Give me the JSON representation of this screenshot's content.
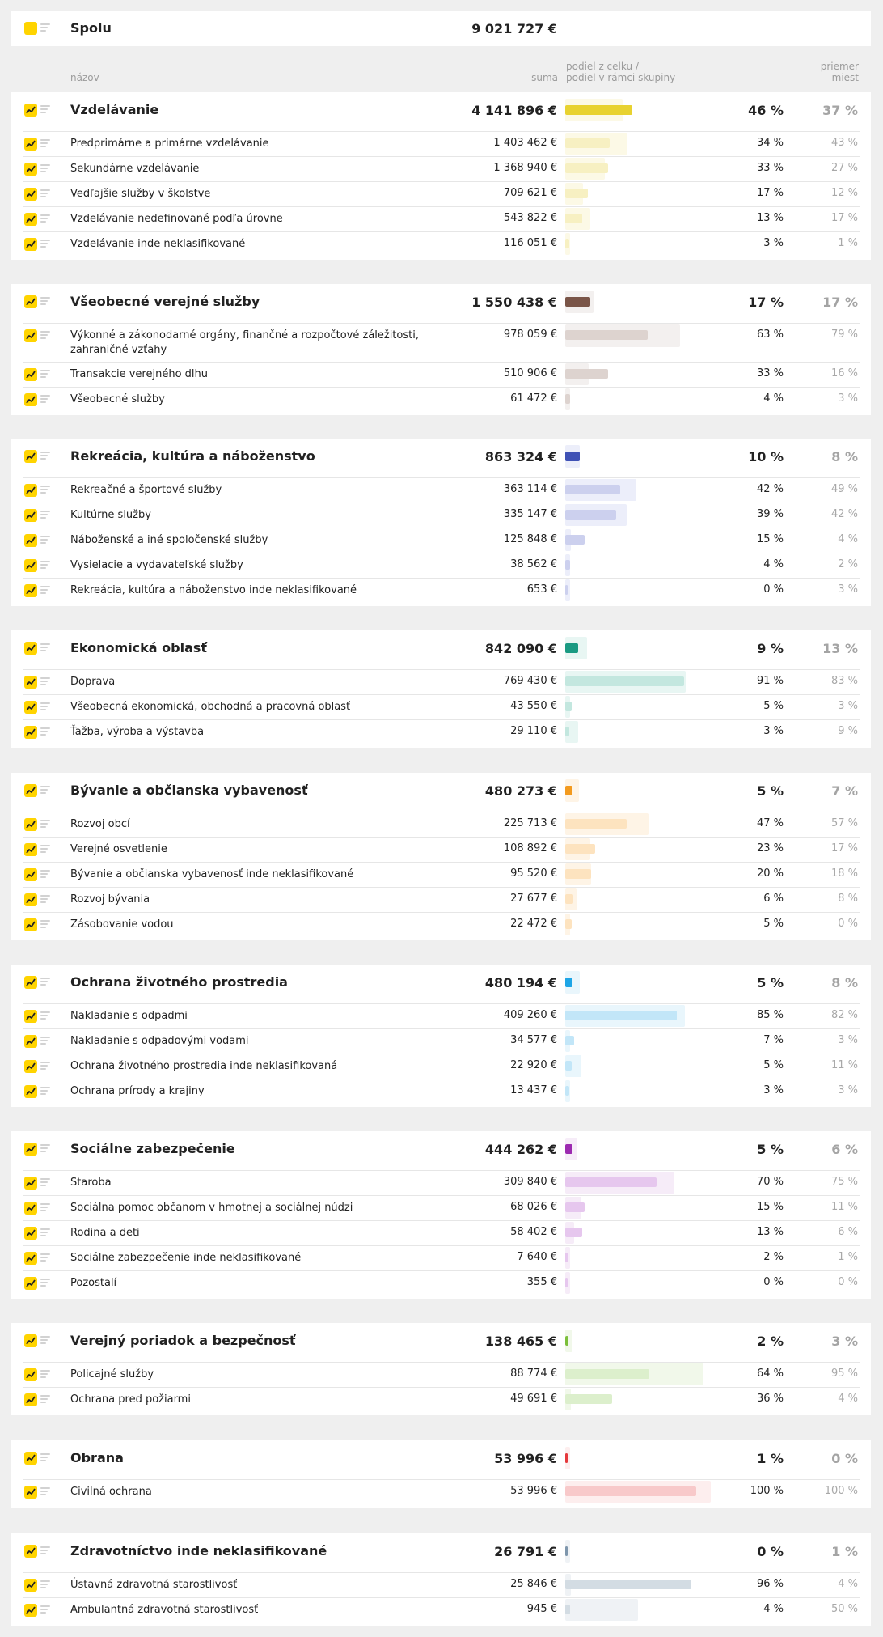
{
  "total": {
    "label": "Spolu",
    "amount": "9 021 727 €"
  },
  "columns": {
    "name": "názov",
    "amount": "suma",
    "share_line1": "podiel z celku /",
    "share_line2": "podiel v rámci skupiny",
    "avg_line1": "priemer",
    "avg_line2": "miest"
  },
  "icons": {
    "chart": "chart-icon",
    "list": "list-icon"
  },
  "groups": [
    {
      "name": "Vzdelávanie",
      "amount": "4 141 896 €",
      "share": "46 %",
      "avg": "37 %",
      "share_value": 46,
      "avg_value": 37,
      "color": "#e8d230",
      "light": "#f7f0c2",
      "bg": "#fcf9e6",
      "items": [
        {
          "name": "Predprimárne a primárne vzdelávanie",
          "amount": "1 403 462 €",
          "share": "34 %",
          "avg": "43 %",
          "share_value": 34,
          "avg_value": 43
        },
        {
          "name": "Sekundárne vzdelávanie",
          "amount": "1 368 940 €",
          "share": "33 %",
          "avg": "27 %",
          "share_value": 33,
          "avg_value": 27
        },
        {
          "name": "Vedľajšie služby v školstve",
          "amount": "709 621 €",
          "share": "17 %",
          "avg": "12 %",
          "share_value": 17,
          "avg_value": 12
        },
        {
          "name": "Vzdelávanie nedefinované podľa úrovne",
          "amount": "543 822 €",
          "share": "13 %",
          "avg": "17 %",
          "share_value": 13,
          "avg_value": 17
        },
        {
          "name": "Vzdelávanie inde neklasifikované",
          "amount": "116 051 €",
          "share": "3 %",
          "avg": "1 %",
          "share_value": 3,
          "avg_value": 1
        }
      ]
    },
    {
      "name": "Všeobecné verejné služby",
      "amount": "1 550 438 €",
      "share": "17 %",
      "avg": "17 %",
      "share_value": 17,
      "avg_value": 17,
      "color": "#7a5548",
      "light": "#ddd3cf",
      "bg": "#f3f0ef",
      "items": [
        {
          "name": "Výkonné a zákonodarné orgány, finančné a rozpočtové záležitosti, zahraničné vzťahy",
          "amount": "978 059 €",
          "share": "63 %",
          "avg": "79 %",
          "share_value": 63,
          "avg_value": 79
        },
        {
          "name": "Transakcie verejného dlhu",
          "amount": "510 906 €",
          "share": "33 %",
          "avg": "16 %",
          "share_value": 33,
          "avg_value": 16
        },
        {
          "name": "Všeobecné služby",
          "amount": "61 472 €",
          "share": "4 %",
          "avg": "3 %",
          "share_value": 4,
          "avg_value": 3
        }
      ]
    },
    {
      "name": "Rekreácia, kultúra a náboženstvo",
      "amount": "863 324 €",
      "share": "10 %",
      "avg": "8 %",
      "share_value": 10,
      "avg_value": 8,
      "color": "#3f51b5",
      "light": "#ccd0ee",
      "bg": "#eceefa",
      "items": [
        {
          "name": "Rekreačné a športové služby",
          "amount": "363 114 €",
          "share": "42 %",
          "avg": "49 %",
          "share_value": 42,
          "avg_value": 49
        },
        {
          "name": "Kultúrne služby",
          "amount": "335 147 €",
          "share": "39 %",
          "avg": "42 %",
          "share_value": 39,
          "avg_value": 42
        },
        {
          "name": "Náboženské a iné spoločenské služby",
          "amount": "125 848 €",
          "share": "15 %",
          "avg": "4 %",
          "share_value": 15,
          "avg_value": 4
        },
        {
          "name": "Vysielacie a vydavateľské služby",
          "amount": "38 562 €",
          "share": "4 %",
          "avg": "2 %",
          "share_value": 4,
          "avg_value": 2
        },
        {
          "name": "Rekreácia, kultúra a náboženstvo inde neklasifikované",
          "amount": "653 €",
          "share": "0 %",
          "avg": "3 %",
          "share_value": 0,
          "avg_value": 3
        }
      ]
    },
    {
      "name": "Ekonomická oblasť",
      "amount": "842 090 €",
      "share": "9 %",
      "avg": "13 %",
      "share_value": 9,
      "avg_value": 13,
      "color": "#1a9a82",
      "light": "#c3e7df",
      "bg": "#e8f6f3",
      "items": [
        {
          "name": "Doprava",
          "amount": "769 430 €",
          "share": "91 %",
          "avg": "83 %",
          "share_value": 91,
          "avg_value": 83
        },
        {
          "name": "Všeobecná ekonomická, obchodná a pracovná oblasť",
          "amount": "43 550 €",
          "share": "5 %",
          "avg": "3 %",
          "share_value": 5,
          "avg_value": 3
        },
        {
          "name": "Ťažba, výroba a výstavba",
          "amount": "29 110 €",
          "share": "3 %",
          "avg": "9 %",
          "share_value": 3,
          "avg_value": 9
        }
      ]
    },
    {
      "name": "Bývanie a občianska vybavenosť",
      "amount": "480 273 €",
      "share": "5 %",
      "avg": "7 %",
      "share_value": 5,
      "avg_value": 7,
      "color": "#f39a1e",
      "light": "#fde3bf",
      "bg": "#fef4e6",
      "items": [
        {
          "name": "Rozvoj obcí",
          "amount": "225 713 €",
          "share": "47 %",
          "avg": "57 %",
          "share_value": 47,
          "avg_value": 57
        },
        {
          "name": "Verejné osvetlenie",
          "amount": "108 892 €",
          "share": "23 %",
          "avg": "17 %",
          "share_value": 23,
          "avg_value": 17
        },
        {
          "name": "Bývanie a občianska vybavenosť inde neklasifikované",
          "amount": "95 520 €",
          "share": "20 %",
          "avg": "18 %",
          "share_value": 20,
          "avg_value": 18
        },
        {
          "name": "Rozvoj bývania",
          "amount": "27 677 €",
          "share": "6 %",
          "avg": "8 %",
          "share_value": 6,
          "avg_value": 8
        },
        {
          "name": "Zásobovanie vodou",
          "amount": "22 472 €",
          "share": "5 %",
          "avg": "0 %",
          "share_value": 5,
          "avg_value": 0
        }
      ]
    },
    {
      "name": "Ochrana životného prostredia",
      "amount": "480 194 €",
      "share": "5 %",
      "avg": "8 %",
      "share_value": 5,
      "avg_value": 8,
      "color": "#1ea5e6",
      "light": "#c2e6f8",
      "bg": "#e9f6fc",
      "items": [
        {
          "name": "Nakladanie s odpadmi",
          "amount": "409 260 €",
          "share": "85 %",
          "avg": "82 %",
          "share_value": 85,
          "avg_value": 82
        },
        {
          "name": "Nakladanie s odpadovými vodami",
          "amount": "34 577 €",
          "share": "7 %",
          "avg": "3 %",
          "share_value": 7,
          "avg_value": 3
        },
        {
          "name": "Ochrana životného prostredia inde neklasifikovaná",
          "amount": "22 920 €",
          "share": "5 %",
          "avg": "11 %",
          "share_value": 5,
          "avg_value": 11
        },
        {
          "name": "Ochrana prírody a krajiny",
          "amount": "13 437 €",
          "share": "3 %",
          "avg": "3 %",
          "share_value": 3,
          "avg_value": 3
        }
      ]
    },
    {
      "name": "Sociálne zabezpečenie",
      "amount": "444 262 €",
      "share": "5 %",
      "avg": "6 %",
      "share_value": 5,
      "avg_value": 6,
      "color": "#9c2ab0",
      "light": "#e6c7ee",
      "bg": "#f6ecf8",
      "items": [
        {
          "name": "Staroba",
          "amount": "309 840 €",
          "share": "70 %",
          "avg": "75 %",
          "share_value": 70,
          "avg_value": 75
        },
        {
          "name": "Sociálna pomoc občanom v hmotnej a sociálnej núdzi",
          "amount": "68 026 €",
          "share": "15 %",
          "avg": "11 %",
          "share_value": 15,
          "avg_value": 11
        },
        {
          "name": "Rodina a deti",
          "amount": "58 402 €",
          "share": "13 %",
          "avg": "6 %",
          "share_value": 13,
          "avg_value": 6
        },
        {
          "name": "Sociálne zabezpečenie inde neklasifikované",
          "amount": "7 640 €",
          "share": "2 %",
          "avg": "1 %",
          "share_value": 2,
          "avg_value": 1
        },
        {
          "name": "Pozostalí",
          "amount": "355 €",
          "share": "0 %",
          "avg": "0 %",
          "share_value": 0,
          "avg_value": 0
        }
      ]
    },
    {
      "name": "Verejný poriadok a bezpečnosť",
      "amount": "138 465 €",
      "share": "2 %",
      "avg": "3 %",
      "share_value": 2,
      "avg_value": 3,
      "color": "#7bbf3a",
      "light": "#dcefcc",
      "bg": "#f1f8ea",
      "items": [
        {
          "name": "Policajné služby",
          "amount": "88 774 €",
          "share": "64 %",
          "avg": "95 %",
          "share_value": 64,
          "avg_value": 95
        },
        {
          "name": "Ochrana pred požiarmi",
          "amount": "49 691 €",
          "share": "36 %",
          "avg": "4 %",
          "share_value": 36,
          "avg_value": 4
        }
      ]
    },
    {
      "name": "Obrana",
      "amount": "53 996 €",
      "share": "1 %",
      "avg": "0 %",
      "share_value": 1,
      "avg_value": 0,
      "color": "#e5383b",
      "light": "#f8c9ca",
      "bg": "#fdeeee",
      "items": [
        {
          "name": "Civilná ochrana",
          "amount": "53 996 €",
          "share": "100 %",
          "avg": "100 %",
          "share_value": 100,
          "avg_value": 100
        }
      ]
    },
    {
      "name": "Zdravotníctvo inde neklasifikované",
      "amount": "26 791 €",
      "share": "0 %",
      "avg": "1 %",
      "share_value": 0,
      "avg_value": 1,
      "color": "#7e96ac",
      "light": "#d3dce3",
      "bg": "#eff2f5",
      "items": [
        {
          "name": "Ústavná zdravotná starostlivosť",
          "amount": "25 846 €",
          "share": "96 %",
          "avg": "4 %",
          "share_value": 96,
          "avg_value": 4
        },
        {
          "name": "Ambulantná zdravotná starostlivosť",
          "amount": "945 €",
          "share": "4 %",
          "avg": "50 %",
          "share_value": 4,
          "avg_value": 50
        }
      ]
    }
  ]
}
